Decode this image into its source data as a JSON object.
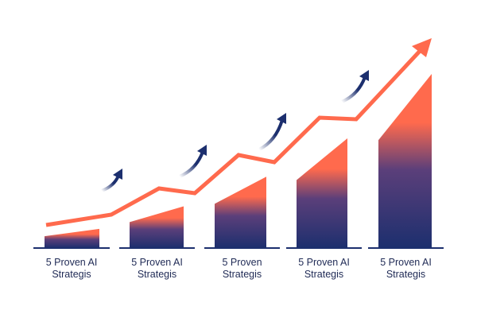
{
  "chart_data": {
    "type": "bar",
    "categories": [
      "5 Proven AI Strategis",
      "5 Proven AI Strategis",
      "5 Proven Strategis",
      "5 Proven AI Strategis",
      "5 Proven AI Strategis"
    ],
    "category_lines": [
      [
        "5 Proven AI",
        "Strategis"
      ],
      [
        "5 Proven AI",
        "Strategis"
      ],
      [
        "5 Proven",
        "Strategis"
      ],
      [
        "5 Proven AI",
        "Strategis"
      ],
      [
        "5 Proven AI",
        "Strategis"
      ]
    ],
    "values": [
      11,
      24,
      41,
      63,
      100
    ],
    "trend_line": "rising arrow",
    "grid": false,
    "axes_visible": false,
    "colors": {
      "bar_top": "#ff6a4d",
      "bar_bottom": "#1c2f6e",
      "trend": "#ff6a4d",
      "small_arrows": "#1c2f6e",
      "label": "#1f2a55"
    }
  }
}
